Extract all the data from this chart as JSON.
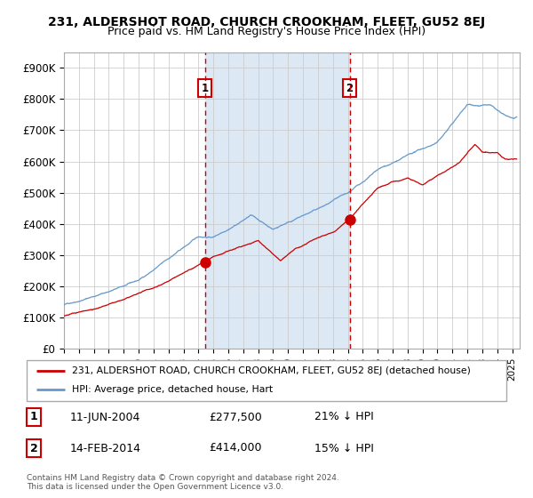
{
  "title1": "231, ALDERSHOT ROAD, CHURCH CROOKHAM, FLEET, GU52 8EJ",
  "title2": "Price paid vs. HM Land Registry's House Price Index (HPI)",
  "legend_line1": "231, ALDERSHOT ROAD, CHURCH CROOKHAM, FLEET, GU52 8EJ (detached house)",
  "legend_line2": "HPI: Average price, detached house, Hart",
  "annotation1": {
    "label": "1",
    "date": "11-JUN-2004",
    "price": 277500,
    "hpi_rel": "21% ↓ HPI"
  },
  "annotation2": {
    "label": "2",
    "date": "14-FEB-2014",
    "price": 414000,
    "hpi_rel": "15% ↓ HPI"
  },
  "footnote1": "Contains HM Land Registry data © Crown copyright and database right 2024.",
  "footnote2": "This data is licensed under the Open Government Licence v3.0.",
  "red_line_color": "#cc0000",
  "blue_line_color": "#6699cc",
  "bg_color": "#dce9f5",
  "ylim": [
    0,
    950000
  ],
  "yticks": [
    0,
    100000,
    200000,
    300000,
    400000,
    500000,
    600000,
    700000,
    800000,
    900000
  ],
  "ytick_labels": [
    "£0",
    "£100K",
    "£200K",
    "£300K",
    "£400K",
    "£500K",
    "£600K",
    "£700K",
    "£800K",
    "£900K"
  ],
  "xstart": 1995.0,
  "xend": 2025.5,
  "xticks": [
    1995,
    1996,
    1997,
    1998,
    1999,
    2000,
    2001,
    2002,
    2003,
    2004,
    2005,
    2006,
    2007,
    2008,
    2009,
    2010,
    2011,
    2012,
    2013,
    2014,
    2015,
    2016,
    2017,
    2018,
    2019,
    2020,
    2021,
    2022,
    2023,
    2024,
    2025
  ],
  "ann1_x": 2004.44,
  "ann2_x": 2014.12,
  "ann1_y": 277500,
  "ann2_y": 414000
}
